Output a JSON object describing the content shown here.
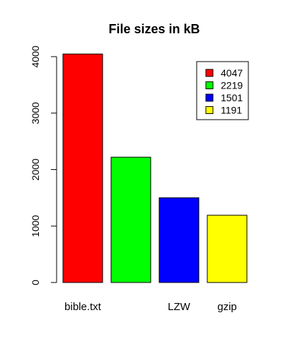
{
  "chart_data": {
    "type": "bar",
    "title": "File sizes in kB",
    "categories": [
      "bible.txt",
      "",
      "LZW",
      "gzip"
    ],
    "values": [
      4047,
      2219,
      1501,
      1191
    ],
    "colors": [
      "#ff0000",
      "#00ff00",
      "#0000ff",
      "#ffff00"
    ],
    "ylim": [
      0,
      4200
    ],
    "yticks": [
      0,
      1000,
      2000,
      3000,
      4000
    ],
    "xlabel": "",
    "ylabel": "",
    "grid": false,
    "legend": {
      "position": "top-right",
      "entries": [
        "4047",
        "2219",
        "1501",
        "1191"
      ]
    }
  }
}
